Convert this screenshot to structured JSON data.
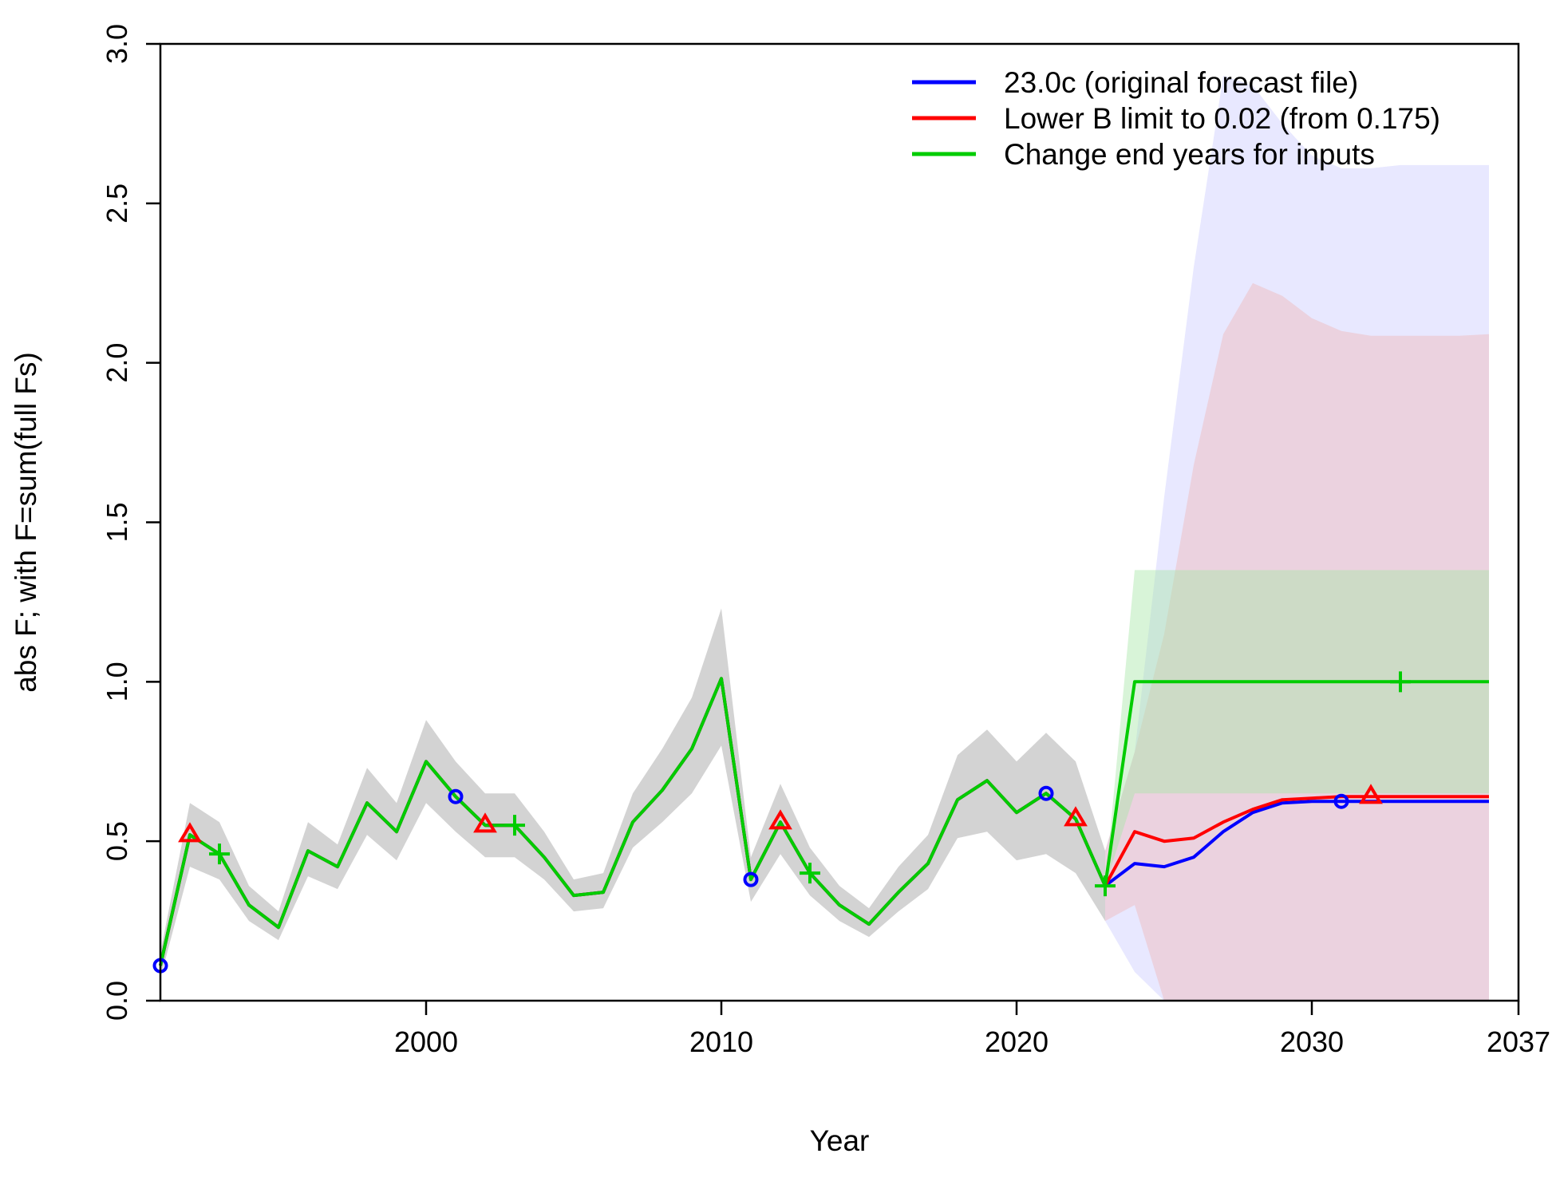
{
  "chart_data": {
    "type": "line",
    "xlabel": "Year",
    "ylabel": "abs F; with F=sum(full Fs)",
    "xlim": [
      1991,
      2037
    ],
    "ylim": [
      0,
      3
    ],
    "x_ticks": [
      2000,
      2010,
      2020,
      2030,
      2037
    ],
    "x_tick_labels": [
      "2000",
      "2010",
      "2020",
      "2030",
      "2037"
    ],
    "y_ticks": [
      0,
      0.5,
      1,
      1.5,
      2,
      2.5,
      3
    ],
    "y_tick_labels": [
      "0.0",
      "0.5",
      "1.0",
      "1.5",
      "2.0",
      "2.5",
      "3.0"
    ],
    "grid": false,
    "legend_position": "top-right",
    "historical": {
      "years": [
        1991,
        1992,
        1993,
        1994,
        1995,
        1996,
        1997,
        1998,
        1999,
        2000,
        2001,
        2002,
        2003,
        2004,
        2005,
        2006,
        2007,
        2008,
        2009,
        2010,
        2011,
        2012,
        2013,
        2014,
        2015,
        2016,
        2017,
        2018,
        2019,
        2020,
        2021,
        2022,
        2023
      ],
      "values": [
        0.11,
        0.52,
        0.46,
        0.3,
        0.23,
        0.47,
        0.42,
        0.62,
        0.53,
        0.75,
        0.64,
        0.55,
        0.55,
        0.45,
        0.33,
        0.34,
        0.56,
        0.66,
        0.79,
        1.01,
        0.38,
        0.56,
        0.4,
        0.3,
        0.24,
        0.34,
        0.43,
        0.63,
        0.69,
        0.59,
        0.65,
        0.57,
        0.36
      ],
      "lower": [
        0.07,
        0.42,
        0.38,
        0.25,
        0.19,
        0.39,
        0.35,
        0.52,
        0.44,
        0.62,
        0.53,
        0.45,
        0.45,
        0.38,
        0.28,
        0.29,
        0.48,
        0.56,
        0.65,
        0.8,
        0.31,
        0.46,
        0.33,
        0.25,
        0.2,
        0.28,
        0.35,
        0.51,
        0.53,
        0.44,
        0.46,
        0.4,
        0.25
      ],
      "upper": [
        0.15,
        0.62,
        0.56,
        0.36,
        0.28,
        0.56,
        0.49,
        0.73,
        0.62,
        0.88,
        0.75,
        0.65,
        0.65,
        0.53,
        0.38,
        0.4,
        0.65,
        0.79,
        0.95,
        1.23,
        0.45,
        0.68,
        0.48,
        0.36,
        0.29,
        0.42,
        0.52,
        0.77,
        0.85,
        0.75,
        0.84,
        0.75,
        0.47
      ]
    },
    "series": [
      {
        "name": "23.0c (original forecast file)",
        "color": "#0000ff",
        "marker": "circle",
        "marker_years": [
          1991,
          2001,
          2011,
          2021,
          2031
        ],
        "forecast_years": [
          2023,
          2024,
          2025,
          2026,
          2027,
          2028,
          2029,
          2030,
          2031,
          2032,
          2033,
          2034,
          2035,
          2036
        ],
        "forecast_values": [
          0.36,
          0.43,
          0.42,
          0.45,
          0.53,
          0.59,
          0.62,
          0.625,
          0.625,
          0.625,
          0.625,
          0.625,
          0.625,
          0.625
        ],
        "band_color": "#ccccff",
        "band_lower": [
          0.25,
          0.09,
          0.0,
          0.0,
          0.0,
          0.0,
          0.0,
          0.0,
          0.0,
          0.0,
          0.0,
          0.0,
          0.0,
          0.0
        ],
        "band_upper": [
          0.47,
          0.78,
          1.58,
          2.3,
          2.9,
          2.87,
          2.75,
          2.65,
          2.61,
          2.61,
          2.62,
          2.62,
          2.62,
          2.62
        ]
      },
      {
        "name": "Lower B limit to 0.02 (from 0.175)",
        "color": "#ff0000",
        "marker": "triangle",
        "marker_years": [
          1992,
          2002,
          2012,
          2022,
          2032
        ],
        "forecast_years": [
          2023,
          2024,
          2025,
          2026,
          2027,
          2028,
          2029,
          2030,
          2031,
          2032,
          2033,
          2034,
          2035,
          2036
        ],
        "forecast_values": [
          0.36,
          0.53,
          0.5,
          0.51,
          0.56,
          0.6,
          0.63,
          0.635,
          0.64,
          0.64,
          0.64,
          0.64,
          0.64,
          0.64
        ],
        "band_color": "#f0b8b8",
        "band_lower": [
          0.25,
          0.3,
          0.0,
          0.0,
          0.0,
          0.0,
          0.0,
          0.0,
          0.0,
          0.0,
          0.0,
          0.0,
          0.0,
          0.0
        ],
        "band_upper": [
          0.47,
          0.78,
          1.15,
          1.68,
          2.09,
          2.25,
          2.21,
          2.14,
          2.1,
          2.085,
          2.085,
          2.085,
          2.085,
          2.09
        ]
      },
      {
        "name": "Change end years for inputs",
        "color": "#00cc00",
        "marker": "plus",
        "marker_years": [
          1993,
          2003,
          2013,
          2023,
          2033
        ],
        "forecast_years": [
          2023,
          2024,
          2025,
          2026,
          2027,
          2028,
          2029,
          2030,
          2031,
          2032,
          2033,
          2034,
          2035,
          2036
        ],
        "forecast_values": [
          0.36,
          1.0,
          1.0,
          1.0,
          1.0,
          1.0,
          1.0,
          1.0,
          1.0,
          1.0,
          1.0,
          1.0,
          1.0,
          1.0
        ],
        "band_color": "#a8e6a8",
        "band_lower": [
          0.36,
          0.65,
          0.65,
          0.65,
          0.65,
          0.65,
          0.65,
          0.65,
          0.65,
          0.65,
          0.65,
          0.65,
          0.65,
          0.65
        ],
        "band_upper": [
          0.36,
          1.35,
          1.35,
          1.35,
          1.35,
          1.35,
          1.35,
          1.35,
          1.35,
          1.35,
          1.35,
          1.35,
          1.35,
          1.35
        ]
      }
    ]
  }
}
